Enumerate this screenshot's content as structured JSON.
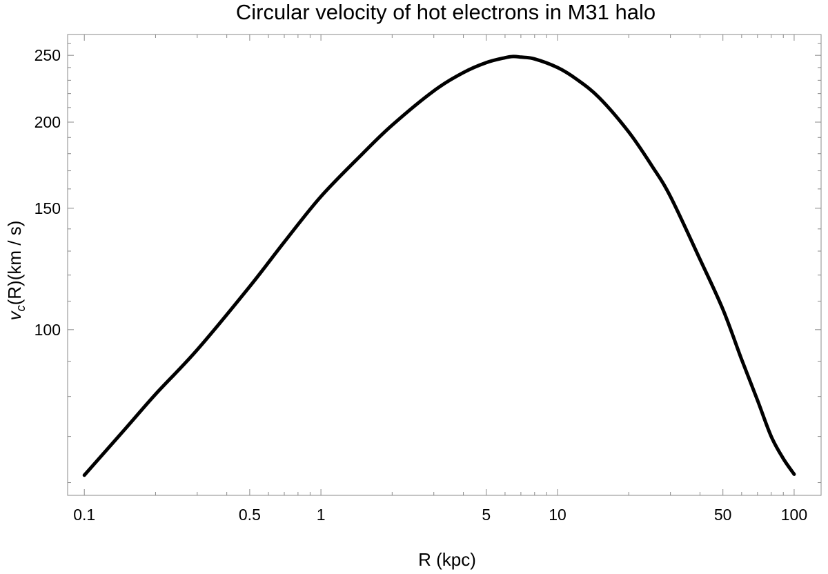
{
  "chart_data": {
    "type": "line",
    "title": "Circular velocity of hot electrons in M31 halo",
    "xlabel": "R (kpc)",
    "ylabel": {
      "v": "v",
      "sub": "c",
      "rest": "(R)(km / s)"
    },
    "xscale": "log",
    "yscale": "log",
    "xlim": [
      0.085,
      130
    ],
    "ylim": [
      57.5,
      268
    ],
    "grid": false,
    "frame": true,
    "line_color": "#000000",
    "x_ticks": [
      {
        "value": 0.1,
        "label": "0.1"
      },
      {
        "value": 0.5,
        "label": "0.5"
      },
      {
        "value": 1,
        "label": "1"
      },
      {
        "value": 5,
        "label": "5"
      },
      {
        "value": 10,
        "label": "10"
      },
      {
        "value": 50,
        "label": "50"
      },
      {
        "value": 100,
        "label": "100"
      }
    ],
    "y_ticks": [
      {
        "value": 100,
        "label": "100"
      },
      {
        "value": 150,
        "label": "150"
      },
      {
        "value": 200,
        "label": "200"
      },
      {
        "value": 250,
        "label": "250"
      }
    ],
    "series": [
      {
        "x": [
          0.1,
          0.15,
          0.2,
          0.3,
          0.5,
          0.7,
          1,
          1.5,
          2,
          3,
          4,
          5,
          6,
          6.5,
          7,
          8,
          10,
          12,
          15,
          20,
          25,
          30,
          40,
          50,
          60,
          70,
          80,
          90,
          100
        ],
        "y": [
          61.5,
          72,
          80.6,
          93.5,
          115.5,
          134,
          156,
          180,
          198,
          222,
          236,
          244,
          248,
          249,
          248.5,
          247,
          240,
          231,
          217,
          193.5,
          173,
          156,
          126.5,
          107,
          90.5,
          79,
          70,
          65,
          61.7
        ]
      }
    ]
  }
}
